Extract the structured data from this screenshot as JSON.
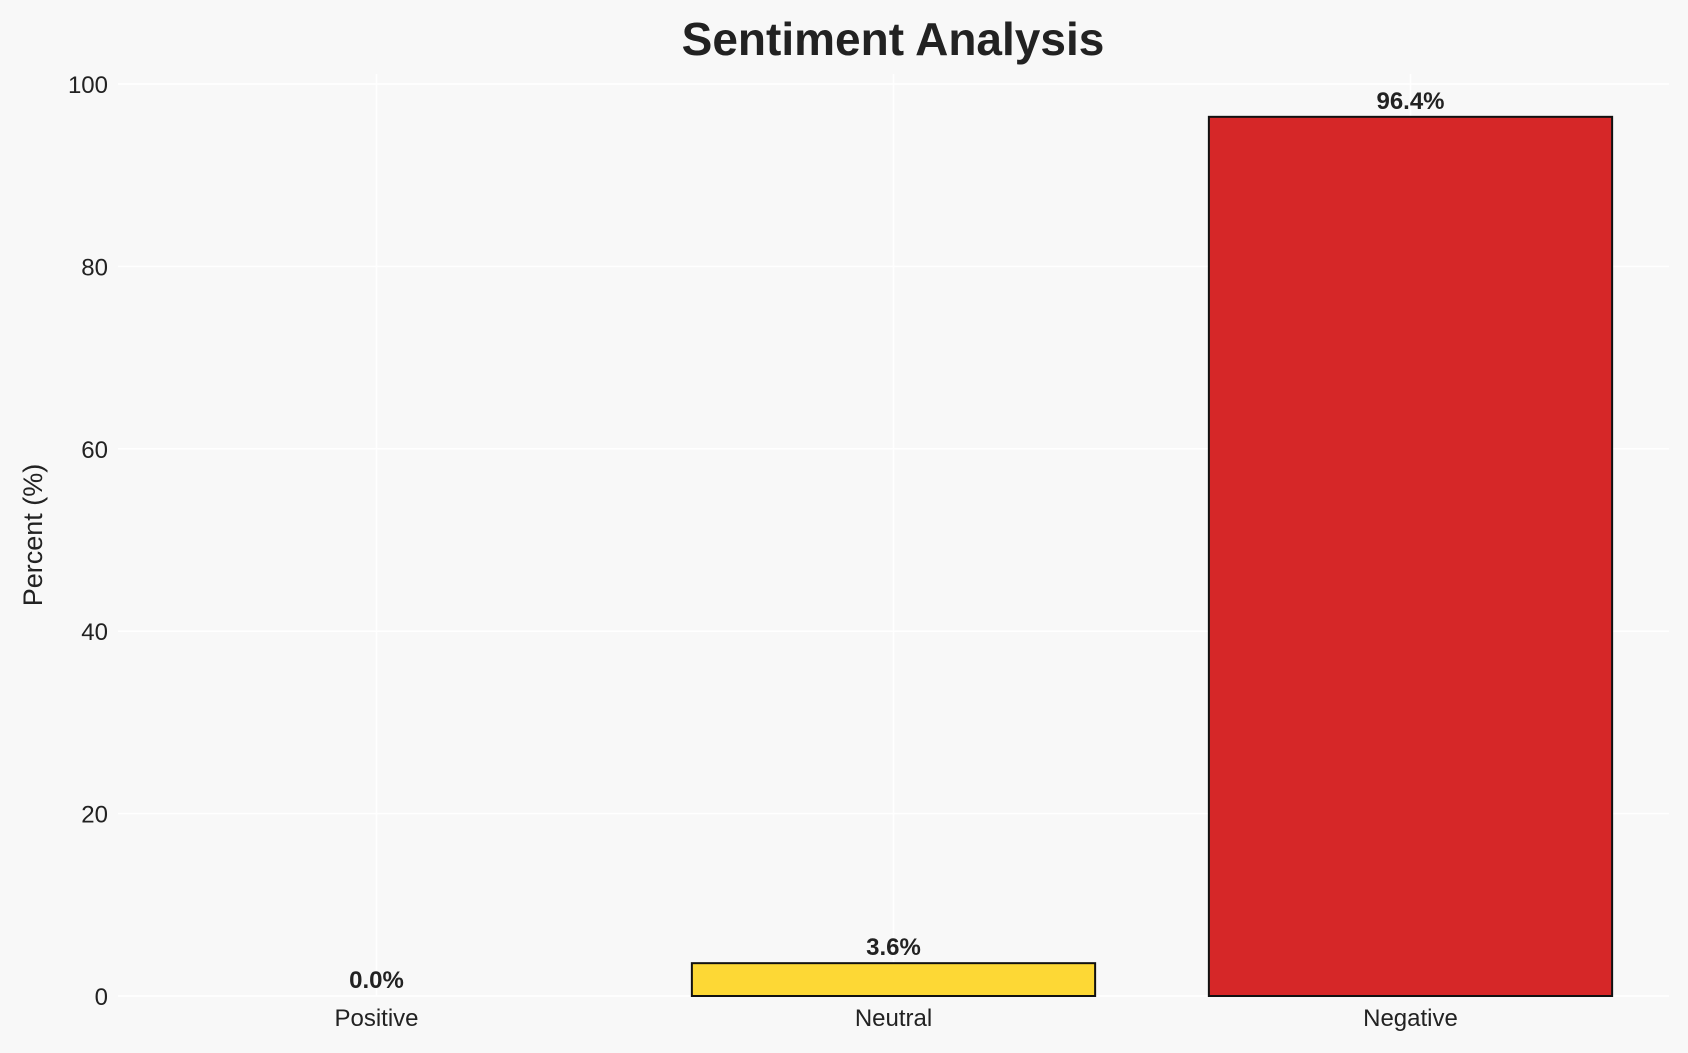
{
  "chart_data": {
    "type": "bar",
    "title": "Sentiment Analysis",
    "xlabel": "",
    "ylabel": "Percent (%)",
    "categories": [
      "Positive",
      "Neutral",
      "Negative"
    ],
    "values": [
      0.0,
      3.6,
      96.4
    ],
    "data_labels": [
      "0.0%",
      "3.6%",
      "96.4%"
    ],
    "colors": [
      "#2ca02c",
      "#fdd835",
      "#d62728"
    ],
    "ylim": [
      0,
      100
    ],
    "yticks": [
      0,
      20,
      40,
      60,
      80,
      100
    ],
    "grid": true
  }
}
